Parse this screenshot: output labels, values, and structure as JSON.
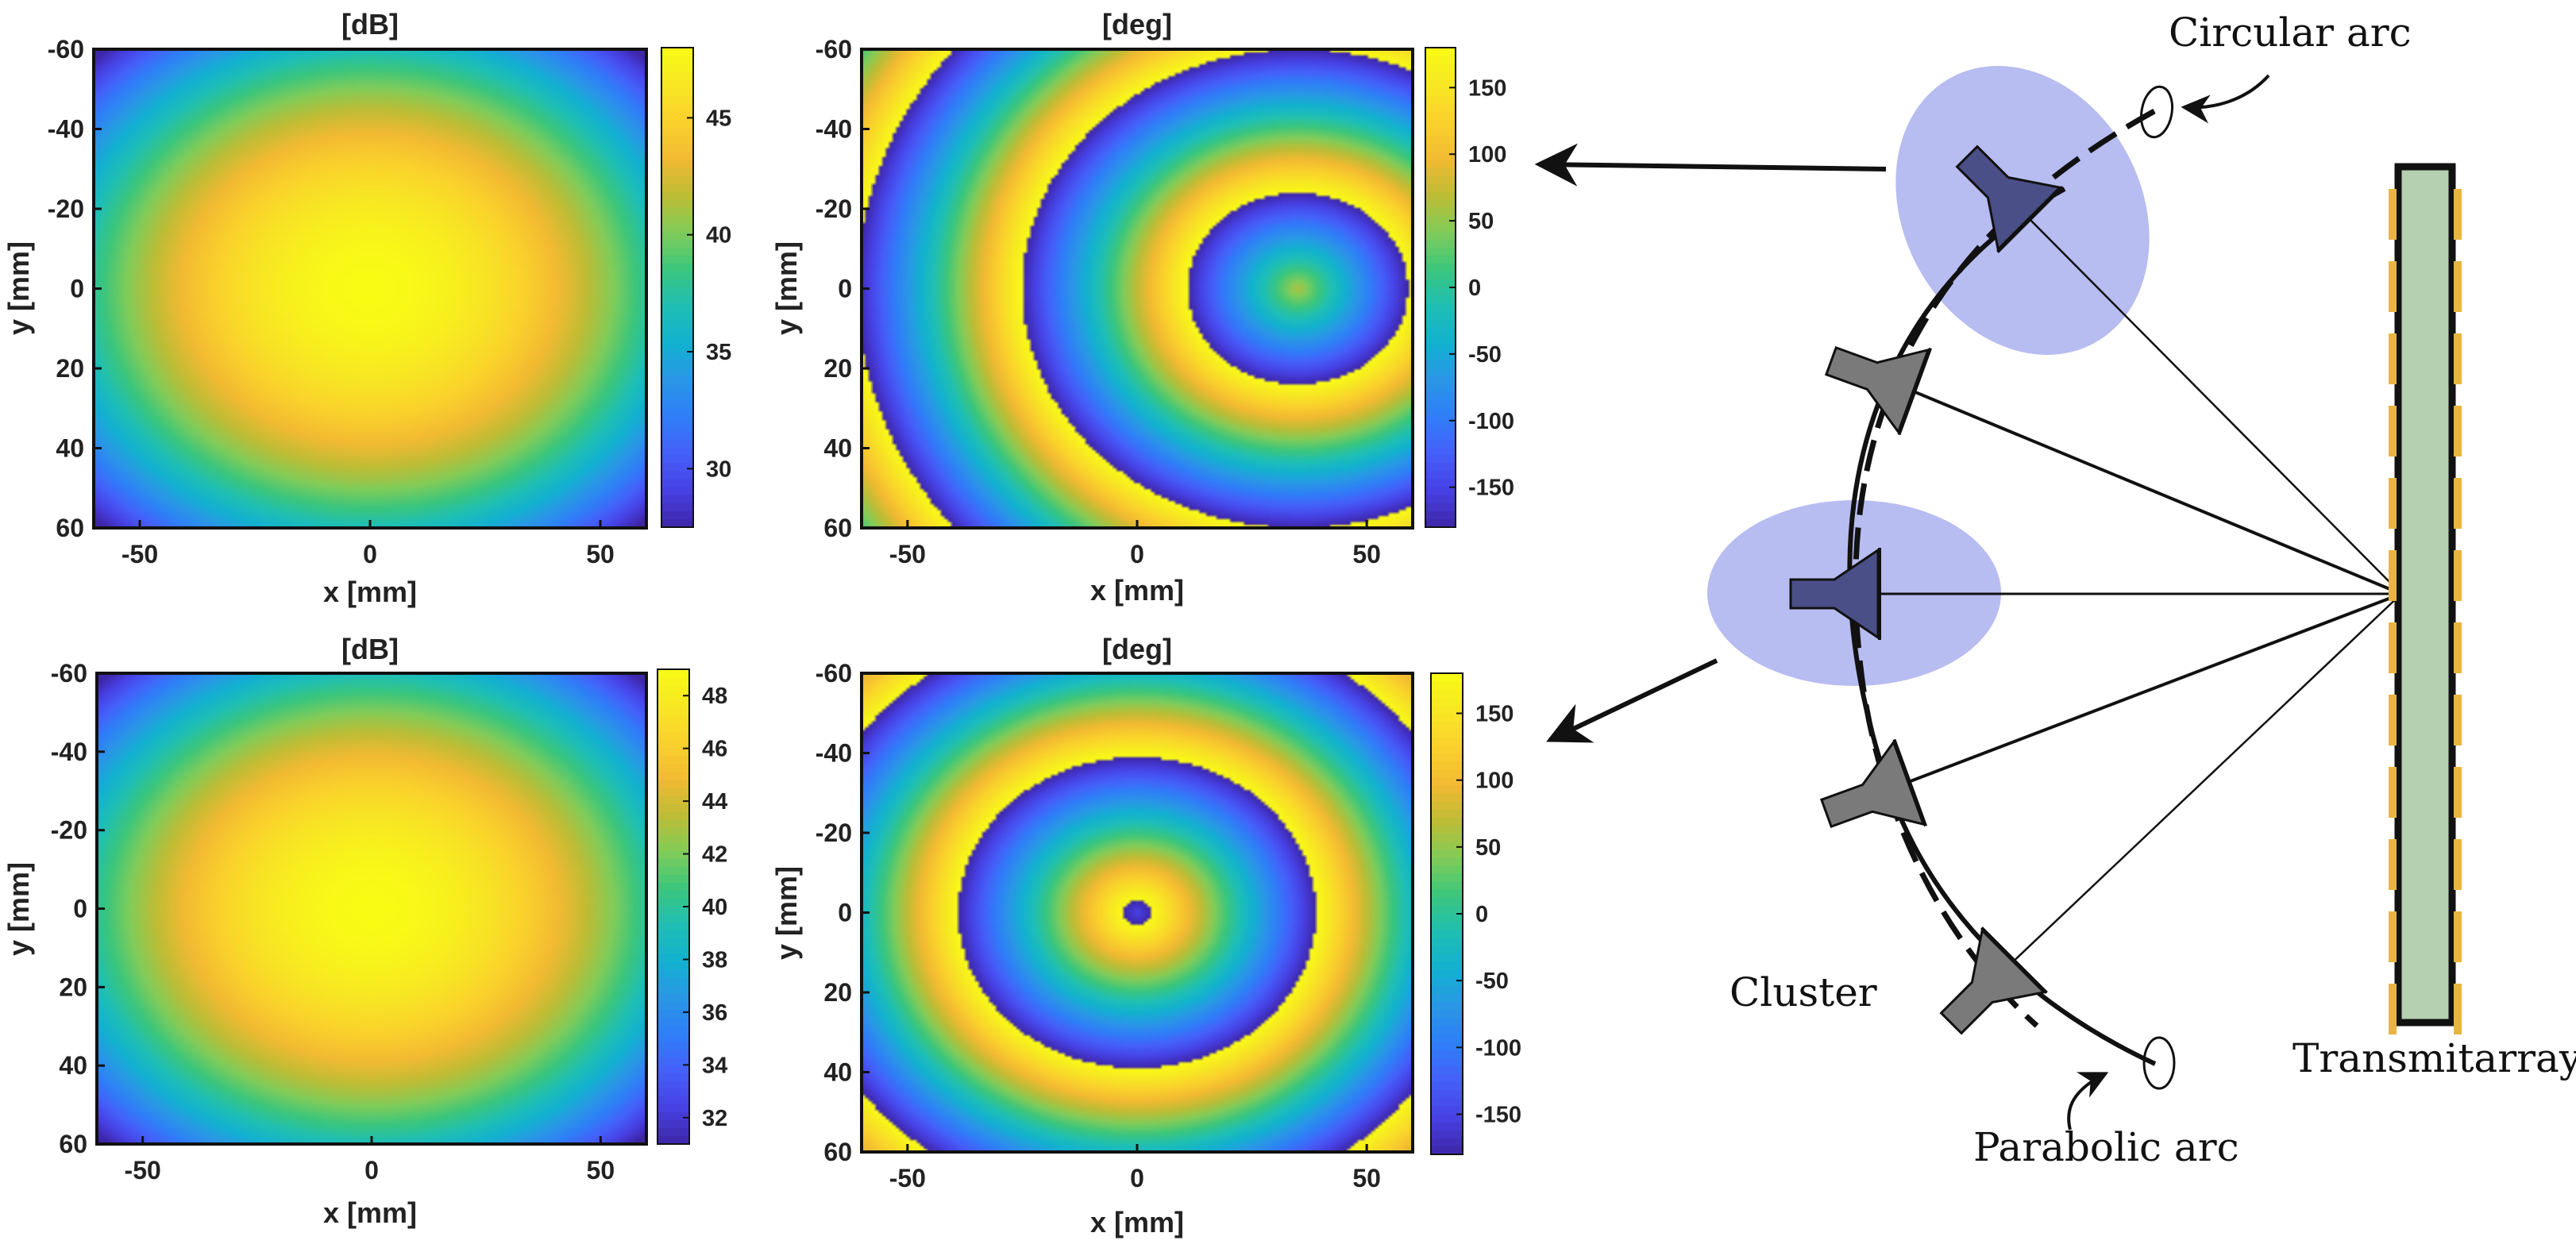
{
  "colormap": [
    "#3e26a8",
    "#4741e4",
    "#4560f9",
    "#2f7ef8",
    "#2a97e6",
    "#12b1d0",
    "#1fbfb4",
    "#3bc67c",
    "#81cc59",
    "#bebc35",
    "#f2ba32",
    "#fad12c",
    "#f7e723",
    "#f9fb15"
  ],
  "chart_data": [
    {
      "type": "heatmap",
      "panel": "top-left",
      "title": "[dB]",
      "xlabel": "x [mm]",
      "ylabel": "y [mm]",
      "xlim": [
        -60,
        60
      ],
      "ylim": [
        -60,
        60
      ],
      "y_reversed": true,
      "x_ticks": [
        -50,
        0,
        50
      ],
      "y_ticks": [
        -60,
        -40,
        -20,
        0,
        20,
        40,
        60
      ],
      "colorbar": {
        "range": [
          27.5,
          48
        ],
        "ticks": [
          30,
          35,
          40,
          45
        ]
      },
      "field": {
        "kind": "amplitude",
        "center": [
          0,
          0
        ],
        "peak": 48,
        "min": 27.5
      }
    },
    {
      "type": "heatmap",
      "panel": "top-right",
      "title": "[deg]",
      "xlabel": "x [mm]",
      "ylabel": "y [mm]",
      "xlim": [
        -60,
        60
      ],
      "ylim": [
        -60,
        60
      ],
      "y_reversed": true,
      "x_ticks": [
        -50,
        0,
        50
      ],
      "y_ticks": [
        -60,
        -40,
        -20,
        0,
        20,
        40,
        60
      ],
      "colorbar": {
        "range": [
          -180,
          180
        ],
        "ticks": [
          150,
          100,
          50,
          0,
          -50,
          -100,
          -150
        ]
      },
      "field": {
        "kind": "phase",
        "center": [
          35,
          0
        ],
        "center_phase": 60,
        "ring_period_mm": 18
      }
    },
    {
      "type": "heatmap",
      "panel": "bottom-left",
      "title": "[dB]",
      "xlabel": "x [mm]",
      "ylabel": "y [mm]",
      "xlim": [
        -60,
        60
      ],
      "ylim": [
        -60,
        60
      ],
      "y_reversed": true,
      "x_ticks": [
        -50,
        0,
        50
      ],
      "y_ticks": [
        -60,
        -40,
        -20,
        0,
        20,
        40,
        60
      ],
      "colorbar": {
        "range": [
          31,
          49
        ],
        "ticks": [
          48,
          46,
          44,
          42,
          40,
          38,
          36,
          34,
          32
        ]
      },
      "field": {
        "kind": "amplitude",
        "center": [
          0,
          0
        ],
        "peak": 49,
        "min": 31
      }
    },
    {
      "type": "heatmap",
      "panel": "bottom-right",
      "title": "[deg]",
      "xlabel": "x [mm]",
      "ylabel": "y [mm]",
      "xlim": [
        -60,
        60
      ],
      "ylim": [
        -60,
        60
      ],
      "y_reversed": true,
      "x_ticks": [
        -50,
        0,
        50
      ],
      "y_ticks": [
        -60,
        -40,
        -20,
        0,
        20,
        40,
        60
      ],
      "colorbar": {
        "range": [
          -180,
          180
        ],
        "ticks": [
          150,
          100,
          50,
          0,
          -50,
          -100,
          -150
        ]
      },
      "field": {
        "kind": "phase",
        "center": [
          0,
          0
        ],
        "center_phase": -150,
        "ring_period_mm": 18
      }
    }
  ],
  "diagram": {
    "labels": {
      "circular_arc": "Circular arc",
      "parabolic_arc": "Parabolic arc",
      "cluster": "Cluster",
      "transmitarray": "Transmitarray"
    },
    "colors": {
      "ellipse_fill": "#aab0ee",
      "highlight_horn": "#4b4f87",
      "horn": "#7a7a7a",
      "panel_fill": "#b5cfb1",
      "element_strip": "#e8b540"
    }
  }
}
